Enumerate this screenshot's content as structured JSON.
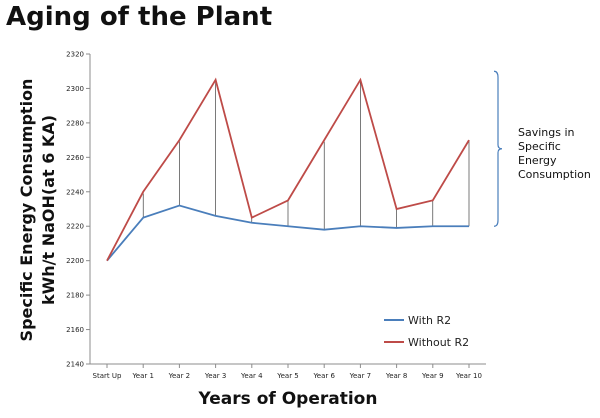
{
  "chart_data": {
    "type": "line",
    "title": "Aging of the Plant",
    "xlabel": "Years of Operation",
    "ylabel_line1": "Specific Energy Consumption",
    "ylabel_line2": "kWh/t NaOH(at 6 KA)",
    "ylim": [
      2140,
      2320
    ],
    "yticks": [
      2140,
      2160,
      2180,
      2200,
      2220,
      2240,
      2260,
      2280,
      2300,
      2320
    ],
    "grid": false,
    "legend_position": "bottom-right",
    "categories": [
      "Start Up",
      "Year 1",
      "Year 2",
      "Year 3",
      "Year 4",
      "Year 5",
      "Year 6",
      "Year 7",
      "Year 8",
      "Year 9",
      "Year 10"
    ],
    "series": [
      {
        "name": "With R2",
        "color": "#4a7ebb",
        "values": [
          2200,
          2225,
          2232,
          2226,
          2222,
          2220,
          2218,
          2220,
          2219,
          2220,
          2220
        ]
      },
      {
        "name": "Without R2",
        "color": "#be4b48",
        "values": [
          2200,
          2240,
          2270,
          2305,
          2225,
          2235,
          2270,
          2305,
          2230,
          2235,
          2270
        ]
      }
    ],
    "annotation": {
      "lines": [
        "Savings in",
        "Specific",
        "Energy",
        "Consumption"
      ],
      "bracket_range": [
        2220,
        2310
      ]
    }
  }
}
